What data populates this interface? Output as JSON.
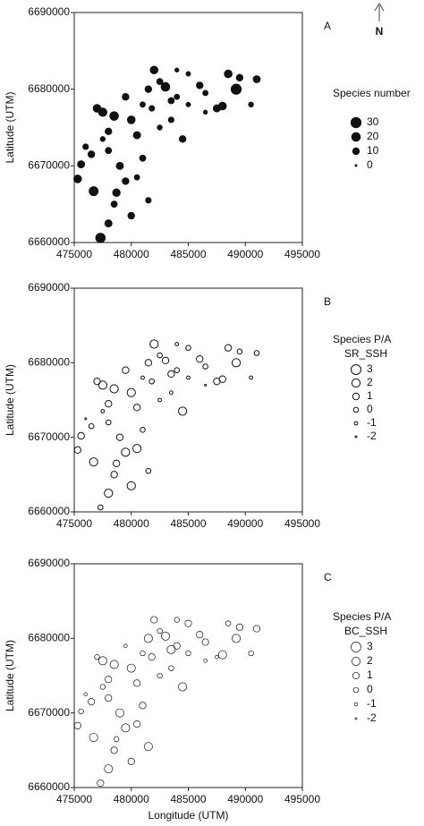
{
  "chart_data": [
    {
      "type": "bubble",
      "title": "A",
      "north_label": "N",
      "ylabel": "Latitude (UTM)",
      "legend_title": "Species number",
      "legend_values": [
        30,
        20,
        10,
        0
      ],
      "filled": true,
      "xlim": [
        475000,
        495000
      ],
      "xticks": [
        475000,
        480000,
        485000,
        490000,
        495000
      ],
      "ylim": [
        6660000,
        6690000
      ],
      "yticks": [
        6660000,
        6670000,
        6680000,
        6690000
      ],
      "x": [
        477300,
        476700,
        475300,
        475600,
        476500,
        477000,
        477500,
        478000,
        478500,
        478000,
        479000,
        479500,
        480000,
        480500,
        481000,
        481000,
        481500,
        482000,
        482500,
        483000,
        483500,
        484000,
        484500,
        485000,
        486000,
        486500,
        487500,
        488000,
        489200,
        489500,
        488500,
        491000,
        490500,
        479500,
        478500,
        478000,
        480000,
        481500,
        484000,
        485000,
        476000,
        478700,
        480500,
        482500,
        486500,
        483500,
        481800,
        477500
      ],
      "y": [
        6660600,
        6666700,
        6668300,
        6670200,
        6671500,
        6677500,
        6677000,
        6674500,
        6676500,
        6672000,
        6670000,
        6679000,
        6676000,
        6674000,
        6671000,
        6678000,
        6680000,
        6682500,
        6681000,
        6680300,
        6676000,
        6679000,
        6673500,
        6678000,
        6680500,
        6679500,
        6677500,
        6677800,
        6680000,
        6681500,
        6682000,
        6681300,
        6678000,
        6668000,
        6665000,
        6662500,
        6663500,
        6665500,
        6682500,
        6682000,
        6672500,
        6666500,
        6668500,
        6675000,
        6677000,
        6678500,
        6677500,
        6673500
      ],
      "sizes": [
        25,
        22,
        15,
        12,
        10,
        15,
        18,
        10,
        20,
        8,
        12,
        10,
        15,
        12,
        8,
        5,
        10,
        15,
        8,
        20,
        6,
        5,
        10,
        3,
        10,
        5,
        12,
        15,
        30,
        10,
        15,
        12,
        4,
        10,
        8,
        12,
        10,
        6,
        2,
        3,
        6,
        14,
        5,
        4,
        2,
        8,
        6,
        4
      ]
    },
    {
      "type": "bubble",
      "title": "B",
      "ylabel": "Latitude (UTM)",
      "legend_title": "Species P/A",
      "legend_subtitle": "SR_SSH",
      "legend_values": [
        3,
        2,
        1,
        0,
        -1,
        -2
      ],
      "filled": false,
      "xlim": [
        475000,
        495000
      ],
      "xticks": [
        475000,
        480000,
        485000,
        490000,
        495000
      ],
      "ylim": [
        6660000,
        6690000
      ],
      "yticks": [
        6660000,
        6670000,
        6680000,
        6690000
      ],
      "x": [
        477300,
        476700,
        475300,
        475600,
        476500,
        477000,
        477500,
        478000,
        478500,
        478000,
        479000,
        479500,
        480000,
        480500,
        481000,
        481000,
        481500,
        482000,
        482500,
        483000,
        483500,
        484000,
        484500,
        485000,
        486000,
        486500,
        487500,
        488000,
        489200,
        489500,
        488500,
        491000,
        490500,
        479500,
        478500,
        478000,
        480000,
        481500,
        484000,
        485000,
        476000,
        478700,
        480500,
        482500,
        486500,
        483500,
        481800,
        477500
      ],
      "y": [
        6660600,
        6666700,
        6668300,
        6670200,
        6671500,
        6677500,
        6677000,
        6674500,
        6676500,
        6672000,
        6670000,
        6679000,
        6676000,
        6674000,
        6671000,
        6678000,
        6680000,
        6682500,
        6681000,
        6680300,
        6676000,
        6679000,
        6673500,
        6678000,
        6680500,
        6679500,
        6677500,
        6677800,
        6680000,
        6681500,
        6682000,
        6681300,
        6678000,
        6668000,
        6665000,
        6662500,
        6663500,
        6665500,
        6682500,
        6682000,
        6672500,
        6666500,
        6668500,
        6675000,
        6677000,
        6678500,
        6677500,
        6673500
      ],
      "sizes": [
        0,
        2,
        1,
        1,
        0,
        1,
        2,
        1,
        2,
        0,
        1,
        1,
        2,
        1,
        0,
        -1,
        1,
        2,
        0,
        1,
        -1,
        0,
        2,
        -1,
        1,
        0,
        1,
        1,
        2,
        0,
        1,
        0,
        -1,
        2,
        1,
        2,
        2,
        0,
        -1,
        0,
        -2,
        1,
        2,
        -1,
        -2,
        1,
        0,
        -1
      ]
    },
    {
      "type": "bubble",
      "title": "C",
      "xlabel": "Longitude (UTM)",
      "ylabel": "Latitude (UTM)",
      "legend_title": "Species P/A",
      "legend_subtitle": "BC_SSH",
      "legend_values": [
        3,
        2,
        1,
        0,
        -1,
        -2
      ],
      "filled": false,
      "xlim": [
        475000,
        495000
      ],
      "xticks": [
        475000,
        480000,
        485000,
        490000,
        495000
      ],
      "ylim": [
        6660000,
        6690000
      ],
      "yticks": [
        6660000,
        6670000,
        6680000,
        6690000
      ],
      "x": [
        477300,
        476700,
        475300,
        475600,
        476500,
        477000,
        477500,
        478000,
        478500,
        478000,
        479000,
        479500,
        480000,
        480500,
        481000,
        481000,
        481500,
        482000,
        482500,
        483000,
        483500,
        484000,
        484500,
        485000,
        486000,
        486500,
        487500,
        488000,
        489200,
        489500,
        488500,
        491000,
        490500,
        479500,
        478500,
        478000,
        480000,
        481500,
        484000,
        485000,
        476000,
        478700,
        480500,
        482500,
        486500,
        483500,
        481800,
        477500
      ],
      "y": [
        6660600,
        6666700,
        6668300,
        6670200,
        6671500,
        6677500,
        6677000,
        6674500,
        6676500,
        6672000,
        6670000,
        6679000,
        6676000,
        6674000,
        6671000,
        6678000,
        6680000,
        6682500,
        6681000,
        6680300,
        6676000,
        6679000,
        6673500,
        6678000,
        6680500,
        6679500,
        6677500,
        6677800,
        6680000,
        6681500,
        6682000,
        6681300,
        6678000,
        6668000,
        6665000,
        6662500,
        6663500,
        6665500,
        6682500,
        6682000,
        6672500,
        6666500,
        6668500,
        6675000,
        6677000,
        6678500,
        6677500,
        6673500
      ],
      "sizes": [
        1,
        2,
        1,
        0,
        1,
        0,
        2,
        1,
        2,
        1,
        2,
        -1,
        2,
        1,
        1,
        0,
        2,
        1,
        0,
        2,
        0,
        1,
        2,
        0,
        1,
        1,
        -1,
        2,
        2,
        1,
        0,
        1,
        0,
        2,
        1,
        2,
        1,
        2,
        0,
        1,
        -1,
        0,
        1,
        0,
        -1,
        2,
        1,
        0
      ]
    }
  ]
}
